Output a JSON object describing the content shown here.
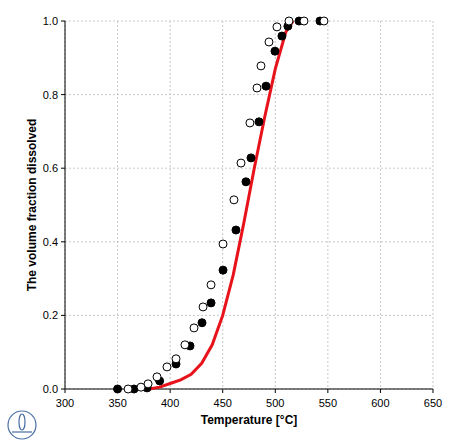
{
  "chart_data": {
    "type": "line",
    "x_label": "Temperature [°C]",
    "y_label": "The volume fraction dissolved",
    "xlim": [
      300,
      650
    ],
    "xticks": [
      300,
      350,
      400,
      450,
      500,
      550,
      600,
      650
    ],
    "ylim": [
      0,
      1
    ],
    "yticks": [
      {
        "value": 0,
        "label": "0.0"
      },
      0.2,
      0.4,
      0.6,
      0.8,
      {
        "value": 1,
        "label": "1.0"
      }
    ],
    "grid": true,
    "series": [
      {
        "type": "line",
        "color": "#e8121b",
        "line_style": "solid",
        "x": [
          380,
          390,
          400,
          410,
          420,
          430,
          440,
          450,
          460,
          470,
          480,
          490,
          500,
          510,
          517
        ],
        "values": [
          0,
          0.005,
          0.015,
          0.025,
          0.04,
          0.07,
          0.12,
          0.2,
          0.31,
          0.45,
          0.6,
          0.74,
          0.87,
          0.97,
          1.0
        ]
      },
      {
        "type": "scatter",
        "color": "#000000",
        "marker": "filled-circle",
        "x": [
          350,
          365.6,
          378,
          390,
          405.6,
          418.9,
          430.3,
          438.9,
          450.3,
          462.6,
          472.1,
          476.9,
          484.5,
          491.2,
          499.7,
          506.3,
          512,
          522.6,
          542.5
        ],
        "values": [
          0,
          0,
          0.003,
          0.022,
          0.068,
          0.117,
          0.18,
          0.234,
          0.323,
          0.432,
          0.563,
          0.628,
          0.726,
          0.823,
          0.918,
          0.959,
          0.986,
          1.0,
          1.0
        ]
      },
      {
        "type": "scatter",
        "color": "#000000",
        "marker": "open-circle",
        "x": [
          360,
          372.3,
          379,
          387.5,
          397,
          405.6,
          414.1,
          422.7,
          431.3,
          438.9,
          450.3,
          460.7,
          467.4,
          475.9,
          482.6,
          486.4,
          494,
          501.6,
          513,
          527.3,
          546.3
        ],
        "values": [
          0,
          0.005,
          0.014,
          0.033,
          0.06,
          0.082,
          0.12,
          0.166,
          0.223,
          0.283,
          0.394,
          0.514,
          0.614,
          0.723,
          0.818,
          0.878,
          0.943,
          0.984,
          1.0,
          1.0,
          1.0
        ]
      }
    ]
  }
}
